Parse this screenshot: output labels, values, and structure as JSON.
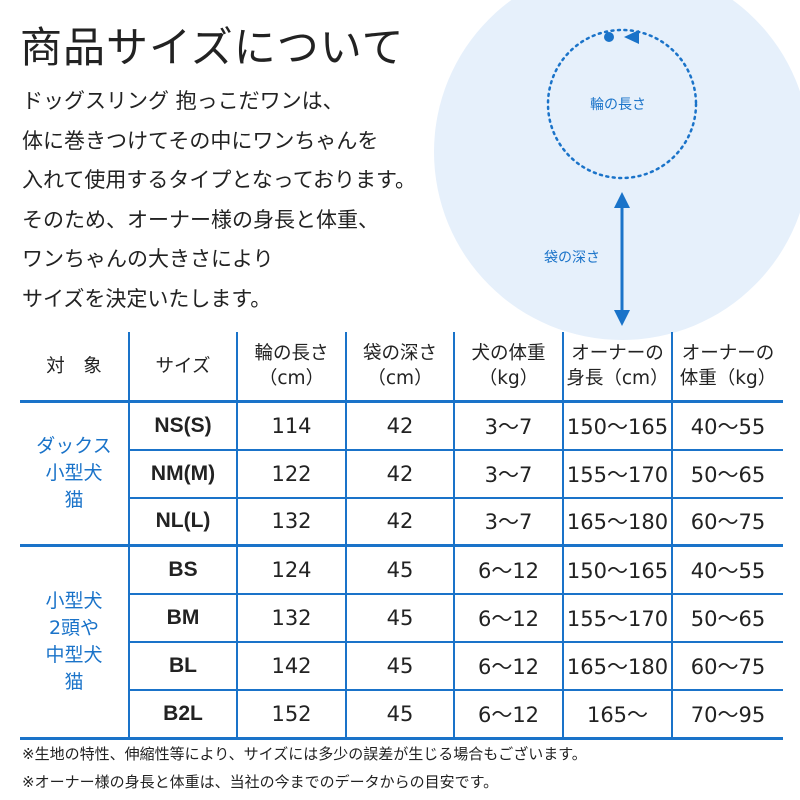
{
  "title": "商品サイズについて",
  "intro_lines": [
    "ドッグスリング 抱っこだワンは、",
    "体に巻きつけてその中にワンちゃんを",
    "入れて使用するタイプとなっております。",
    "そのため、オーナー様の身長と体重、",
    "ワンちゃんの大きさにより",
    "サイズを決定いたします。"
  ],
  "diagram": {
    "ring_label": "輪の長さ",
    "depth_label": "袋の深さ",
    "colors": {
      "circle_fill": "#e6f0fb",
      "accent": "#1a73c9"
    }
  },
  "table": {
    "headers": [
      [
        "対　象"
      ],
      [
        "サイズ"
      ],
      [
        "輪の長さ",
        "（cm）"
      ],
      [
        "袋の深さ",
        "（cm）"
      ],
      [
        "犬の体重",
        "（kg）"
      ],
      [
        "オーナーの",
        "身長（cm）"
      ],
      [
        "オーナーの",
        "体重（kg）"
      ]
    ],
    "groups": [
      {
        "label_lines": [
          "ダックス",
          "小型犬",
          "猫"
        ],
        "rows": [
          [
            "NS(S)",
            "114",
            "42",
            "3～7",
            "150～165",
            "40～55"
          ],
          [
            "NM(M)",
            "122",
            "42",
            "3～7",
            "155～170",
            "50～65"
          ],
          [
            "NL(L)",
            "132",
            "42",
            "3～7",
            "165～180",
            "60～75"
          ]
        ]
      },
      {
        "label_lines": [
          "小型犬",
          "2頭や",
          "中型犬",
          "猫"
        ],
        "rows": [
          [
            "BS",
            "124",
            "45",
            "6～12",
            "150～165",
            "40～55"
          ],
          [
            "BM",
            "132",
            "45",
            "6～12",
            "155～170",
            "50～65"
          ],
          [
            "BL",
            "142",
            "45",
            "6～12",
            "165～180",
            "60～75"
          ],
          [
            "B2L",
            "152",
            "45",
            "6～12",
            "165～",
            "70～95"
          ]
        ]
      }
    ]
  },
  "notes": [
    "※生地の特性、伸縮性等により、サイズには多少の誤差が生じる場合もございます。",
    "※オーナー様の身長と体重は、当社の今までのデータからの目安です。"
  ]
}
